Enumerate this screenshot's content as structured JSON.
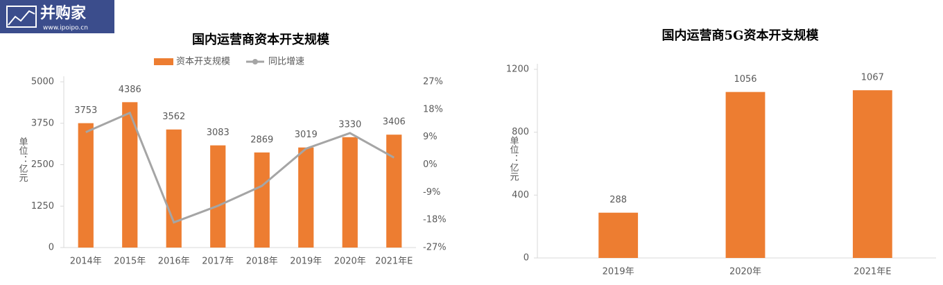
{
  "logo": {
    "title": "并购家",
    "url": "www.ipoipo.cn"
  },
  "chart_data": [
    {
      "type": "combo",
      "title": "国内运营商资本开支规模",
      "y_label": "单位：亿元",
      "categories": [
        "2014年",
        "2015年",
        "2016年",
        "2017年",
        "2018年",
        "2019年",
        "2020年",
        "2021年E"
      ],
      "series": [
        {
          "name": "资本开支规模",
          "color": "#ed7d31",
          "values": [
            3753,
            4386,
            3562,
            3083,
            2869,
            3019,
            3330,
            3406
          ]
        },
        {
          "name": "同比增速",
          "color": "#a5a5a5",
          "axis": "y2",
          "values": [
            10.6,
            16.9,
            -18.8,
            -13.4,
            -6.9,
            5.2,
            10.3,
            2.3
          ]
        }
      ],
      "ylim": [
        0,
        5000
      ],
      "yticks": [
        0,
        1250,
        2500,
        3750,
        5000
      ],
      "y2lim": [
        -27,
        27
      ],
      "y2ticks": [
        {
          "value": -27,
          "label": "-27%"
        },
        {
          "value": -18,
          "label": "-18%"
        },
        {
          "value": -9,
          "label": "-9%"
        },
        {
          "value": 0,
          "label": "0%"
        },
        {
          "value": 9,
          "label": "9%"
        },
        {
          "value": 18,
          "label": "18%"
        },
        {
          "value": 27,
          "label": "27%"
        }
      ],
      "legend": "top"
    },
    {
      "type": "bar",
      "title": "国内运营商5G资本开支规模",
      "y_label": "单位：亿元",
      "categories": [
        "2019年",
        "2020年",
        "2021年E"
      ],
      "values": [
        288,
        1056,
        1067
      ],
      "color": "#ed7d31",
      "ylim": [
        0,
        1200
      ],
      "yticks": [
        0,
        400,
        800,
        1200
      ]
    }
  ]
}
